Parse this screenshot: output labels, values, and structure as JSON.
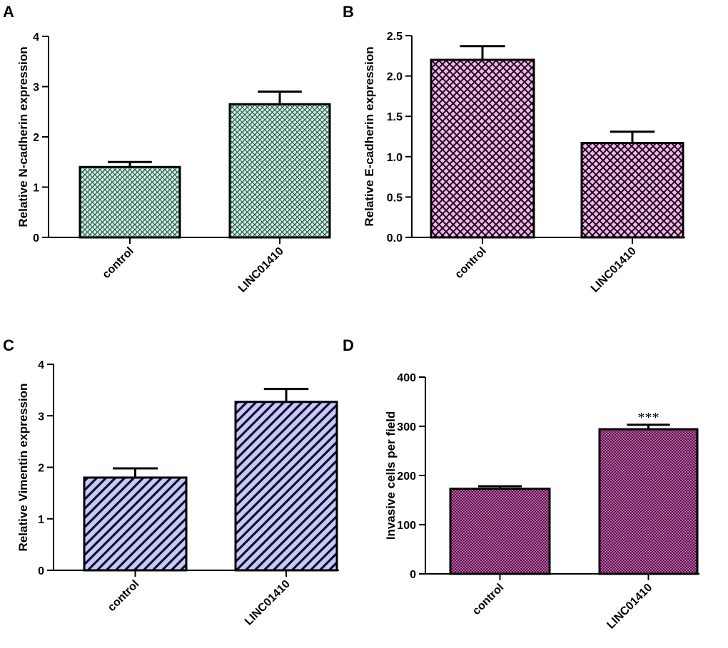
{
  "chart_data": [
    {
      "type": "bar",
      "panel_label": "A",
      "categories": [
        "control",
        "LINC01410"
      ],
      "values": [
        1.4,
        2.65
      ],
      "errors": [
        0.1,
        0.25
      ],
      "ylabel": "Relative N-cadherin expression",
      "ylim": [
        0,
        4
      ],
      "yticks": [
        0,
        1,
        2,
        3,
        4
      ],
      "ytick_labels": [
        "0",
        "1",
        "2",
        "3",
        "4"
      ],
      "annotations": [
        "",
        ""
      ],
      "fill": "#c8f0e0",
      "pattern": "fine-crosshatch"
    },
    {
      "type": "bar",
      "panel_label": "B",
      "categories": [
        "control",
        "LINC01410"
      ],
      "values": [
        2.2,
        1.17
      ],
      "errors": [
        0.17,
        0.14
      ],
      "ylabel": "Relative E-cadherin expression",
      "ylim": [
        0,
        2.5
      ],
      "yticks": [
        0,
        0.5,
        1.0,
        1.5,
        2.0,
        2.5
      ],
      "ytick_labels": [
        "0.0",
        "0.5",
        "1.0",
        "1.5",
        "2.0",
        "2.5"
      ],
      "annotations": [
        "",
        ""
      ],
      "fill": "#f2b6ea",
      "pattern": "crosshatch"
    },
    {
      "type": "bar",
      "panel_label": "C",
      "categories": [
        "control",
        "LINC01410"
      ],
      "values": [
        1.8,
        3.27
      ],
      "errors": [
        0.18,
        0.25
      ],
      "ylabel": "Relative Vimentin expression",
      "ylim": [
        0,
        4
      ],
      "yticks": [
        0,
        1,
        2,
        3,
        4
      ],
      "ytick_labels": [
        "0",
        "1",
        "2",
        "3",
        "4"
      ],
      "annotations": [
        "",
        ""
      ],
      "fill": "#c8c8f8",
      "pattern": "diagonal"
    },
    {
      "type": "bar",
      "panel_label": "D",
      "categories": [
        "control",
        "LINC01410"
      ],
      "values": [
        173,
        294
      ],
      "errors": [
        5,
        9
      ],
      "ylabel": "Invasive cells per field",
      "ylim": [
        0,
        400
      ],
      "yticks": [
        0,
        100,
        200,
        300,
        400
      ],
      "ytick_labels": [
        "0",
        "100",
        "200",
        "300",
        "400"
      ],
      "annotations": [
        "",
        "***"
      ],
      "fill": "#e070c8",
      "pattern": "dense-crosshatch"
    }
  ],
  "colors": {
    "panel_a_fill": "#c8f0e0",
    "panel_b_fill": "#f2b6ea",
    "panel_c_fill": "#c8c8f8",
    "panel_d_fill": "#e070c8",
    "ink": "#000000"
  }
}
